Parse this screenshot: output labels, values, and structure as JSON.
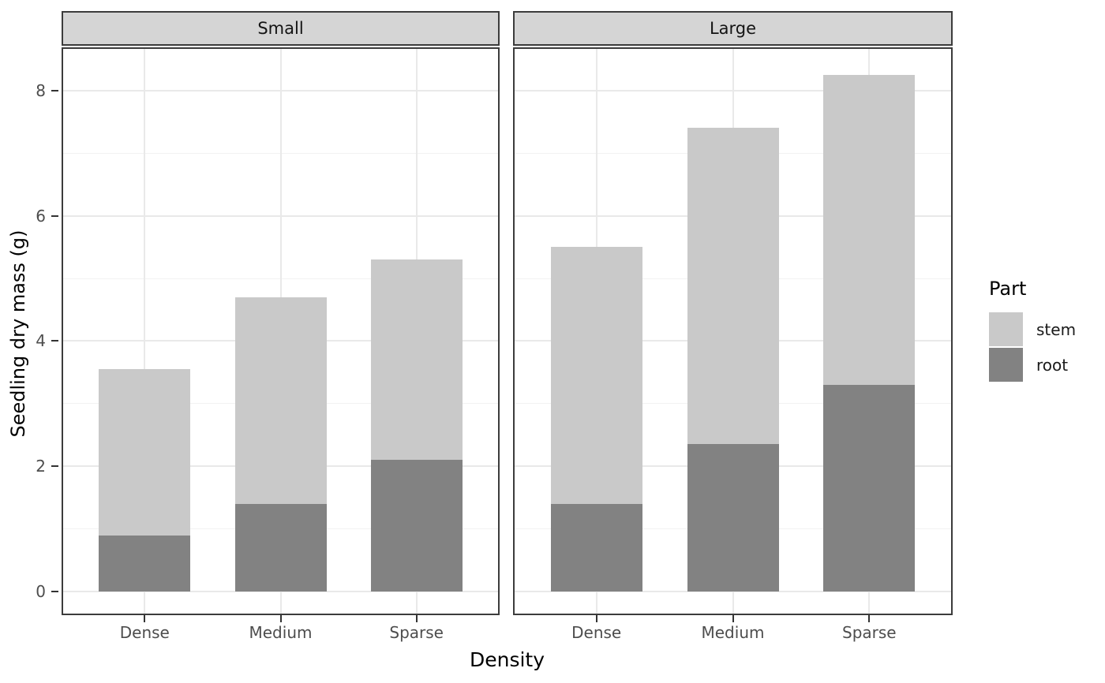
{
  "chart_data": {
    "type": "bar",
    "stacked": true,
    "title": "",
    "xlabel": "Density",
    "ylabel": "Seedling dry mass (g)",
    "categories": [
      "Dense",
      "Medium",
      "Sparse"
    ],
    "facets": [
      {
        "label": "Small",
        "series": [
          {
            "name": "root",
            "values": [
              0.9,
              1.4,
              2.1
            ]
          },
          {
            "name": "stem",
            "values": [
              2.65,
              3.3,
              3.2
            ]
          }
        ],
        "stack_totals": [
          3.55,
          4.7,
          5.3
        ]
      },
      {
        "label": "Large",
        "series": [
          {
            "name": "root",
            "values": [
              1.4,
              2.35,
              3.3
            ]
          },
          {
            "name": "stem",
            "values": [
              4.1,
              5.05,
              4.95
            ]
          }
        ],
        "stack_totals": [
          5.5,
          7.4,
          8.25
        ]
      }
    ],
    "y_axis": {
      "ticks": [
        0,
        2,
        4,
        6,
        8
      ],
      "minor_ticks": [
        1,
        3,
        5,
        7
      ],
      "range": [
        -0.38,
        8.69
      ]
    },
    "legend": {
      "title": "Part",
      "position": "right",
      "items": [
        {
          "label": "stem",
          "color": "#c9c9c9"
        },
        {
          "label": "root",
          "color": "#828282"
        }
      ]
    },
    "grid": {
      "horizontal_major": true,
      "horizontal_minor": true,
      "vertical_major_at_categories": true
    }
  },
  "colors": {
    "stem_fill": "#c9c9c9",
    "root_fill": "#828282",
    "strip_fill": "#d5d5d5",
    "panel_border": "#3c3c3c",
    "grid_major": "#e9e9e9",
    "grid_minor": "#f2f2f2",
    "tick_label": "#4d4d4d",
    "axis_title": "#000000",
    "background": "#ffffff"
  }
}
